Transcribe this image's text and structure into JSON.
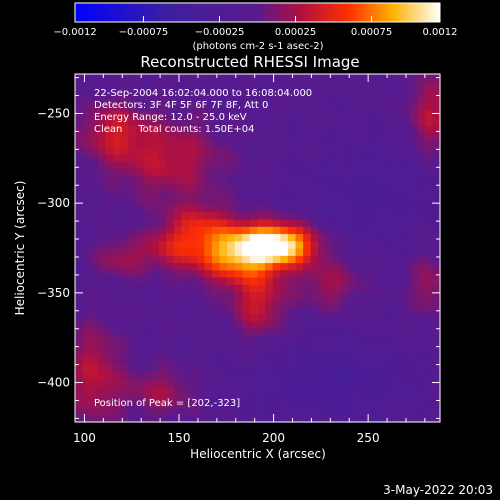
{
  "chart_data": {
    "type": "heatmap",
    "title": "Reconstructed RHESSI Image",
    "xlabel": "Heliocentric X (arcsec)",
    "ylabel": "Heliocentric Y (arcsec)",
    "xlim": [
      95,
      288
    ],
    "ylim": [
      -422,
      -228
    ],
    "xticks": [
      100,
      150,
      200,
      250
    ],
    "yticks": [
      -250,
      -300,
      -350,
      -400
    ],
    "colorbar": {
      "range": [
        -0.0012,
        0.0012
      ],
      "ticks": [
        "-0.0012",
        "-0.00075",
        "-0.00025",
        "0.00025",
        "0.00075",
        "0.0012"
      ],
      "label": "(photons cm-2 s-1 asec-2)",
      "colormap": "blue-purple-red-yellow-white"
    },
    "annotations": [
      "22-Sep-2004 16:02:04.000 to 16:08:04.000",
      "Detectors: 3F 4F 5F 6F 7F 8F, Att 0",
      "Energy Range: 12.0 - 25.0 keV",
      "Clean     Total counts: 1.50E+04"
    ],
    "peak_label": "Position of Peak = [202,-323]",
    "peak": {
      "x": 202,
      "y": -323,
      "value": 0.0012
    },
    "sources": [
      {
        "x": 202,
        "y": -323,
        "value": 0.00125,
        "sx": 14,
        "sy": 8
      },
      {
        "x": 178,
        "y": -328,
        "value": 0.00085,
        "sx": 16,
        "sy": 11
      },
      {
        "x": 160,
        "y": -312,
        "value": 0.0004,
        "sx": 12,
        "sy": 9
      },
      {
        "x": 145,
        "y": -325,
        "value": 0.00035,
        "sx": 10,
        "sy": 8
      },
      {
        "x": 120,
        "y": -330,
        "value": 0.0003,
        "sx": 10,
        "sy": 8
      },
      {
        "x": 192,
        "y": -355,
        "value": 0.00045,
        "sx": 10,
        "sy": 14
      },
      {
        "x": 230,
        "y": -345,
        "value": 0.0003,
        "sx": 12,
        "sy": 10
      },
      {
        "x": 145,
        "y": -275,
        "value": 0.0004,
        "sx": 20,
        "sy": 16
      },
      {
        "x": 115,
        "y": -260,
        "value": 0.0004,
        "sx": 12,
        "sy": 12
      },
      {
        "x": 105,
        "y": -395,
        "value": 0.0004,
        "sx": 10,
        "sy": 20
      },
      {
        "x": 140,
        "y": -405,
        "value": 0.0003,
        "sx": 14,
        "sy": 10
      },
      {
        "x": 282,
        "y": -250,
        "value": 0.0004,
        "sx": 7,
        "sy": 16
      },
      {
        "x": 282,
        "y": -345,
        "value": 0.0003,
        "sx": 7,
        "sy": 12
      },
      {
        "x": 250,
        "y": -295,
        "value": -0.0002,
        "sx": 25,
        "sy": 20
      },
      {
        "x": 230,
        "y": -400,
        "value": -0.00025,
        "sx": 30,
        "sy": 18
      }
    ]
  },
  "footer": {
    "timestamp": "3-May-2022 20:03"
  }
}
